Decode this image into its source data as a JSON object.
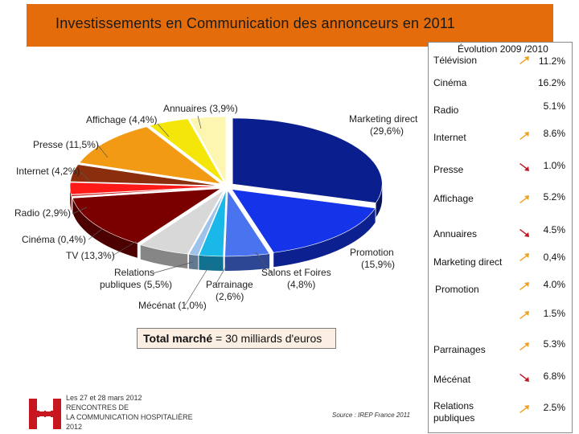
{
  "title": "Investissements en Communication des annonceurs en 2011",
  "chart_data": {
    "type": "pie",
    "title": "Investissements en Communication des annonceurs en 2011",
    "slices": [
      {
        "label": "Marketing direct",
        "value": 29.6,
        "text": "Marketing direct (29,6%)",
        "color": "#0b1e8e"
      },
      {
        "label": "Promotion",
        "value": 15.9,
        "text": "Promotion (15,9%)",
        "color": "#1533e8"
      },
      {
        "label": "Salons et Foires",
        "value": 4.8,
        "text": "Salons et Foires (4,8%)",
        "color": "#4a73f0"
      },
      {
        "label": "Parrainage",
        "value": 2.6,
        "text": "Parrainage (2,6%)",
        "color": "#1ab8e8"
      },
      {
        "label": "Mécénat",
        "value": 1.0,
        "text": "Mécénat (1,0%)",
        "color": "#9fc2ea"
      },
      {
        "label": "Relations publiques",
        "value": 5.5,
        "text": "Relations publiques (5,5%)",
        "color": "#d8d8d8"
      },
      {
        "label": "TV",
        "value": 13.3,
        "text": "TV (13,3%)",
        "color": "#7a0000"
      },
      {
        "label": "Cinéma",
        "value": 0.4,
        "text": "Cinéma (0,4%)",
        "color": "#c81212"
      },
      {
        "label": "Radio",
        "value": 2.9,
        "text": "Radio (2,9%)",
        "color": "#ff1a1a"
      },
      {
        "label": "Internet",
        "value": 4.2,
        "text": "Internet (4,2%)",
        "color": "#8b2e0e"
      },
      {
        "label": "Presse",
        "value": 11.5,
        "text": "Presse (11,5%)",
        "color": "#f39a14"
      },
      {
        "label": "Affichage",
        "value": 4.4,
        "text": "Affichage (4,4%)",
        "color": "#f5e60a"
      },
      {
        "label": "Annuaires",
        "value": 3.9,
        "text": "Annuaires (3,9%)",
        "color": "#fdf6b0"
      }
    ],
    "label_lines": {
      "marketing_direct": [
        "Marketing direct",
        "(29,6%)"
      ],
      "promotion": [
        "Promotion",
        "(15,9%)"
      ],
      "salons": [
        "Salons et Foires",
        "(4,8%)"
      ],
      "parrainage": [
        "Parrainage",
        "(2,6%)"
      ],
      "mecenat": [
        "Mécénat (1,0%)"
      ],
      "relations": [
        "Relations",
        "publiques (5,5%)"
      ],
      "tv": [
        "TV (13,3%)"
      ],
      "cinema": [
        "Cinéma (0,4%)"
      ],
      "radio": [
        "Radio (2,9%)"
      ],
      "internet": [
        "Internet (4,2%)"
      ],
      "presse": [
        "Presse (11,5%)"
      ],
      "affichage": [
        "Affichage (4,4%)"
      ],
      "annuaires": [
        "Annuaires (3,9%)"
      ]
    }
  },
  "evolution": {
    "title": "Évolution 2009 /2010",
    "rows": [
      {
        "name": "Télévision",
        "value": "11.2%",
        "trend": "up"
      },
      {
        "name": "Cinéma",
        "value": "16.2%",
        "trend": "none"
      },
      {
        "name": "Radio",
        "value": "5.1%",
        "trend": "none"
      },
      {
        "name": "Internet",
        "value": "8.6%",
        "trend": "up"
      },
      {
        "name": "Presse",
        "value": "1.0%",
        "trend": "down"
      },
      {
        "name": "Affichage",
        "value": "5.2%",
        "trend": "up"
      },
      {
        "name": "Annuaires",
        "value": "4.5%",
        "trend": "down"
      },
      {
        "name": "Marketing direct",
        "value": "0,4%",
        "trend": "up"
      },
      {
        "name": "Promotion",
        "value": "4.0%",
        "trend": "up"
      },
      {
        "name": "",
        "value": "1.5%",
        "trend": "up"
      },
      {
        "name": "Parrainages",
        "value": "5.3%",
        "trend": "up"
      },
      {
        "name": "Mécénat",
        "value": "6.8%",
        "trend": "down"
      },
      {
        "name": "Relations publiques",
        "name_lines": [
          "Relations",
          "publiques"
        ],
        "value": "2.5%",
        "trend": "up"
      }
    ]
  },
  "total": {
    "label": "Total marché",
    "value": "= 30 milliards d'euros"
  },
  "footer": {
    "event_lines": [
      "Les 27 et 28 mars 2012",
      "RENCONTRES DE",
      "LA COMMUNICATION HOSPITALIÈRE",
      "2012"
    ],
    "source": "Source : IREP France 2011"
  },
  "colors": {
    "title_bar": "#e46c0a",
    "arrow_up": "#f0a020",
    "arrow_down": "#c0141e"
  },
  "icons": {
    "logo": "hospital-h-logo",
    "up": "arrow-up-right-icon",
    "down": "arrow-down-right-icon"
  }
}
